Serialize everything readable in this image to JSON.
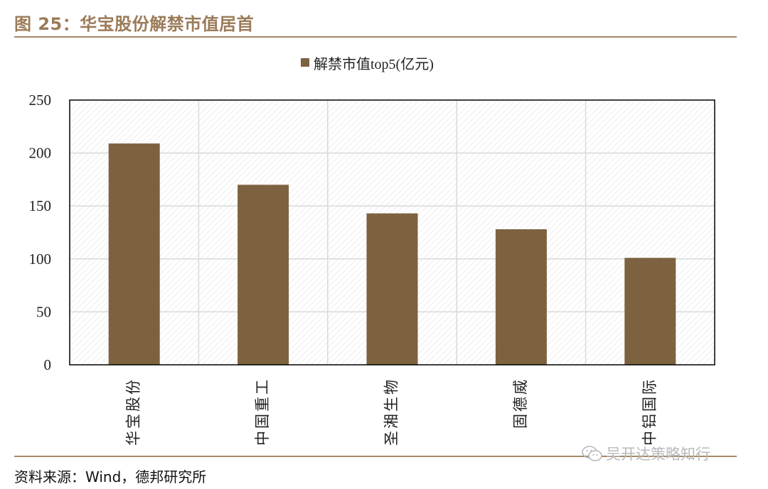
{
  "figure": {
    "title": "图 25：华宝股份解禁市值居首",
    "source": "资料来源：Wind，德邦研究所",
    "watermark": "吴开达策略知行",
    "watermark_icon": "wechat-icon"
  },
  "colors": {
    "title": "#9b7b58",
    "rule": "#a58868",
    "bar": "#7d6240",
    "grid": "#d9d9d9",
    "axis": "#000000"
  },
  "chart_data": {
    "type": "bar",
    "categories": [
      "华宝股份",
      "中国重工",
      "圣湘生物",
      "固德威",
      "中铝国际"
    ],
    "series": [
      {
        "name": "解禁市值top5(亿元)",
        "values": [
          209,
          170,
          143,
          128,
          101
        ]
      }
    ],
    "ylim": [
      0,
      250
    ],
    "yticks": [
      0,
      50,
      100,
      150,
      200,
      250
    ],
    "xlabel": "",
    "ylabel": "",
    "grid": true,
    "legend": "top-center",
    "tick_label_orientation": "vertical"
  }
}
